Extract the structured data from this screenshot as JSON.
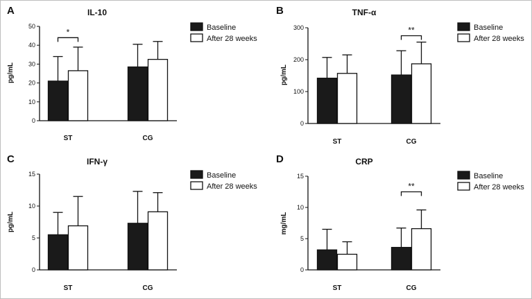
{
  "chart_data": [
    {
      "type": "bar",
      "panel": "A",
      "title": "IL-10",
      "ylabel": "pg/mL",
      "xlabel": "",
      "ylim": [
        0,
        50
      ],
      "yticks": [
        0,
        10,
        20,
        30,
        40,
        50
      ],
      "categories": [
        "ST",
        "CG"
      ],
      "series": [
        {
          "name": "Baseline",
          "values": [
            21,
            28.5
          ],
          "errors": [
            13,
            12
          ]
        },
        {
          "name": "After 28 weeks",
          "values": [
            26.5,
            32.5
          ],
          "errors": [
            12.5,
            9.5
          ]
        }
      ],
      "legend": [
        "Baseline",
        "After 28 weeks"
      ],
      "significance": [
        {
          "category": "ST",
          "label": "*",
          "at": 44
        }
      ]
    },
    {
      "type": "bar",
      "panel": "B",
      "title": "TNF-α",
      "ylabel": "pg/mL",
      "xlabel": "",
      "ylim": [
        0,
        300
      ],
      "yticks": [
        0,
        100,
        200,
        300
      ],
      "categories": [
        "ST",
        "CG"
      ],
      "series": [
        {
          "name": "Baseline",
          "values": [
            142,
            152
          ],
          "errors": [
            65,
            76
          ]
        },
        {
          "name": "After 28 weeks",
          "values": [
            157,
            187
          ],
          "errors": [
            58,
            68
          ]
        }
      ],
      "legend": [
        "Baseline",
        "After 28 weeks"
      ],
      "significance": [
        {
          "category": "CG",
          "label": "**",
          "at": 275
        }
      ]
    },
    {
      "type": "bar",
      "panel": "C",
      "title": "IFN-γ",
      "ylabel": "pg/mL",
      "xlabel": "",
      "ylim": [
        0,
        15
      ],
      "yticks": [
        0,
        5,
        10,
        15
      ],
      "categories": [
        "ST",
        "CG"
      ],
      "series": [
        {
          "name": "Baseline",
          "values": [
            5.5,
            7.3
          ],
          "errors": [
            3.5,
            5.0
          ]
        },
        {
          "name": "After 28 weeks",
          "values": [
            6.9,
            9.1
          ],
          "errors": [
            4.6,
            3.0
          ]
        }
      ],
      "legend": [
        "Baseline",
        "After 28 weeks"
      ],
      "significance": []
    },
    {
      "type": "bar",
      "panel": "D",
      "title": "CRP",
      "ylabel": "mg/mL",
      "xlabel": "",
      "ylim": [
        0,
        15
      ],
      "yticks": [
        0,
        5,
        10,
        15
      ],
      "categories": [
        "ST",
        "CG"
      ],
      "series": [
        {
          "name": "Baseline",
          "values": [
            3.2,
            3.6
          ],
          "errors": [
            3.3,
            3.1
          ]
        },
        {
          "name": "After 28 weeks",
          "values": [
            2.5,
            6.6
          ],
          "errors": [
            2.0,
            3.0
          ]
        }
      ],
      "legend": [
        "Baseline",
        "After 28 weeks"
      ],
      "significance": [
        {
          "category": "CG",
          "label": "**",
          "at": 12.5
        }
      ]
    }
  ],
  "colors": {
    "baseline": "#1a1a1a",
    "after": "#ffffff",
    "stroke": "#111111"
  }
}
